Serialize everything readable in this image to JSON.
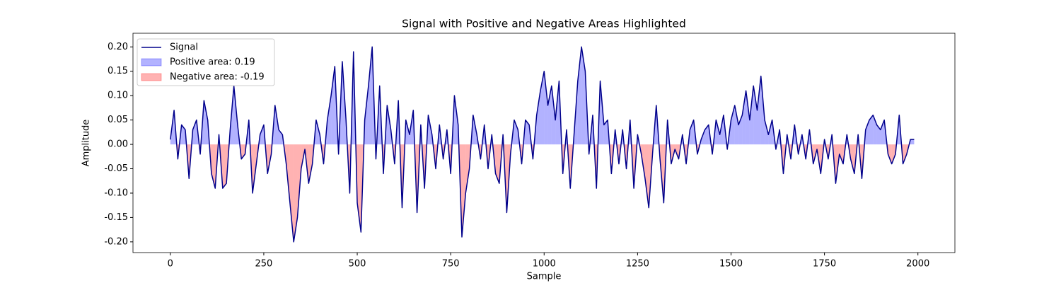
{
  "chart_data": {
    "type": "line",
    "title": "Signal with Positive and Negative Areas Highlighted",
    "x_label": "Sample",
    "y_label": "Amplitude",
    "x": [
      0,
      10,
      20,
      30,
      40,
      50,
      60,
      70,
      80,
      90,
      100,
      110,
      120,
      130,
      140,
      150,
      160,
      170,
      180,
      190,
      200,
      210,
      220,
      230,
      240,
      250,
      260,
      270,
      280,
      290,
      300,
      310,
      320,
      330,
      340,
      350,
      360,
      370,
      380,
      390,
      400,
      410,
      420,
      430,
      440,
      450,
      460,
      470,
      480,
      490,
      500,
      510,
      520,
      530,
      540,
      550,
      560,
      570,
      580,
      590,
      600,
      610,
      620,
      630,
      640,
      650,
      660,
      670,
      680,
      690,
      700,
      710,
      720,
      730,
      740,
      750,
      760,
      770,
      780,
      790,
      800,
      810,
      820,
      830,
      840,
      850,
      860,
      870,
      880,
      890,
      900,
      910,
      920,
      930,
      940,
      950,
      960,
      970,
      980,
      990,
      1000,
      1010,
      1020,
      1030,
      1040,
      1050,
      1060,
      1070,
      1080,
      1090,
      1100,
      1110,
      1120,
      1130,
      1140,
      1150,
      1160,
      1170,
      1180,
      1190,
      1200,
      1210,
      1220,
      1230,
      1240,
      1250,
      1260,
      1270,
      1280,
      1290,
      1300,
      1310,
      1320,
      1330,
      1340,
      1350,
      1360,
      1370,
      1380,
      1390,
      1400,
      1410,
      1420,
      1430,
      1440,
      1450,
      1460,
      1470,
      1480,
      1490,
      1500,
      1510,
      1520,
      1530,
      1540,
      1550,
      1560,
      1570,
      1580,
      1590,
      1600,
      1610,
      1620,
      1630,
      1640,
      1650,
      1660,
      1670,
      1680,
      1690,
      1700,
      1710,
      1720,
      1730,
      1740,
      1750,
      1760,
      1770,
      1780,
      1790,
      1800,
      1810,
      1820,
      1830,
      1840,
      1850,
      1860,
      1870,
      1880,
      1890,
      1900,
      1910,
      1920,
      1930,
      1940,
      1950,
      1960,
      1970,
      1980,
      1990
    ],
    "series": [
      {
        "name": "Signal",
        "color": "#00008b",
        "values": [
          0.01,
          0.07,
          -0.03,
          0.04,
          0.03,
          -0.07,
          0.03,
          0.05,
          -0.02,
          0.09,
          0.05,
          -0.06,
          -0.09,
          0.02,
          -0.09,
          -0.08,
          0.03,
          0.12,
          0.04,
          -0.03,
          -0.02,
          0.05,
          -0.1,
          -0.04,
          0.02,
          0.04,
          -0.06,
          -0.02,
          0.08,
          0.03,
          0.02,
          -0.04,
          -0.12,
          -0.2,
          -0.15,
          -0.05,
          -0.01,
          -0.08,
          -0.04,
          0.05,
          0.02,
          -0.04,
          0.05,
          0.1,
          0.16,
          -0.02,
          0.17,
          0.05,
          -0.1,
          0.19,
          -0.12,
          -0.18,
          0.05,
          0.12,
          0.2,
          -0.03,
          0.12,
          -0.06,
          0.08,
          0.03,
          -0.04,
          0.09,
          -0.13,
          0.05,
          0.02,
          0.07,
          -0.14,
          0.04,
          -0.09,
          0.06,
          0.02,
          -0.05,
          0.04,
          -0.03,
          0.03,
          -0.06,
          0.1,
          0.04,
          -0.19,
          -0.1,
          -0.05,
          0.06,
          0.02,
          -0.03,
          0.04,
          -0.05,
          0.02,
          -0.06,
          -0.08,
          0.02,
          -0.14,
          -0.02,
          0.05,
          0.03,
          -0.04,
          0.05,
          0.04,
          -0.03,
          0.06,
          0.11,
          0.15,
          0.08,
          0.12,
          0.05,
          0.13,
          -0.06,
          0.03,
          -0.09,
          0.02,
          0.13,
          0.2,
          0.15,
          -0.02,
          0.06,
          -0.09,
          0.13,
          0.04,
          0.05,
          -0.06,
          0.03,
          -0.04,
          0.03,
          -0.05,
          0.05,
          -0.09,
          0.02,
          -0.02,
          -0.07,
          -0.13,
          -0.02,
          0.08,
          -0.03,
          -0.12,
          0.05,
          -0.04,
          -0.01,
          -0.03,
          0.02,
          -0.04,
          0.03,
          0.05,
          -0.02,
          0.01,
          0.03,
          0.04,
          -0.02,
          0.05,
          0.02,
          0.06,
          -0.01,
          0.05,
          0.08,
          0.04,
          0.06,
          0.11,
          0.05,
          0.12,
          0.07,
          0.14,
          0.05,
          0.02,
          0.05,
          -0.01,
          0.03,
          -0.06,
          0.02,
          -0.03,
          0.04,
          -0.02,
          0.02,
          -0.03,
          0.03,
          -0.04,
          -0.01,
          -0.06,
          0.01,
          -0.03,
          0.02,
          -0.08,
          -0.02,
          -0.04,
          0.02,
          -0.03,
          -0.06,
          0.02,
          -0.07,
          0.03,
          0.05,
          0.06,
          0.04,
          0.03,
          0.05,
          -0.02,
          -0.04,
          -0.02,
          0.06,
          -0.04,
          -0.02,
          0.01,
          0.01
        ]
      }
    ],
    "fills": [
      {
        "name": "Positive area: 0.19",
        "color": "#0000ff",
        "side": "positive"
      },
      {
        "name": "Negative area: -0.19",
        "color": "#ff0000",
        "side": "negative"
      }
    ],
    "xlim": [
      -99.95,
      2098.95
    ],
    "ylim": [
      -0.222,
      0.228
    ],
    "xticks": [
      0,
      250,
      500,
      750,
      1000,
      1250,
      1500,
      1750,
      2000
    ],
    "yticks": [
      {
        "value": -0.2,
        "label": "-0.20"
      },
      {
        "value": -0.15,
        "label": "-0.15"
      },
      {
        "value": -0.1,
        "label": "-0.10"
      },
      {
        "value": -0.05,
        "label": "-0.05"
      },
      {
        "value": 0,
        "label": "0.00"
      },
      {
        "value": 0.05,
        "label": "0.05"
      },
      {
        "value": 0.1,
        "label": "0.10"
      },
      {
        "value": 0.15,
        "label": "0.15"
      },
      {
        "value": 0.2,
        "label": "0.20"
      }
    ],
    "legend": "upper left"
  }
}
